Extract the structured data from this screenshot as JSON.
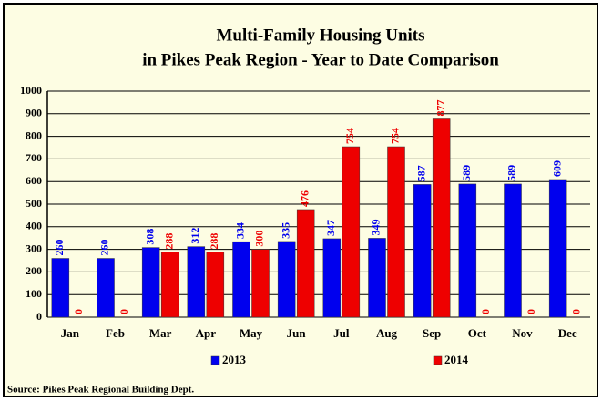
{
  "chart_data": {
    "type": "bar",
    "title": [
      "Multi-Family Housing Units",
      "in Pikes Peak Region - Year to Date Comparison"
    ],
    "categories": [
      "Jan",
      "Feb",
      "Mar",
      "Apr",
      "May",
      "Jun",
      "Jul",
      "Aug",
      "Sep",
      "Oct",
      "Nov",
      "Dec"
    ],
    "series": [
      {
        "name": "2013",
        "color": "#0000ee",
        "values": [
          260,
          260,
          308,
          312,
          334,
          335,
          347,
          349,
          587,
          589,
          589,
          609
        ]
      },
      {
        "name": "2014",
        "color": "#ee0000",
        "values": [
          0,
          0,
          288,
          288,
          300,
          476,
          754,
          754,
          877,
          0,
          0,
          0
        ]
      }
    ],
    "ylim": [
      0,
      1000
    ],
    "yticks": [
      0,
      100,
      200,
      300,
      400,
      500,
      600,
      700,
      800,
      900,
      1000
    ],
    "grid": true,
    "source": "Source: Pikes Peak Regional Building Dept."
  }
}
